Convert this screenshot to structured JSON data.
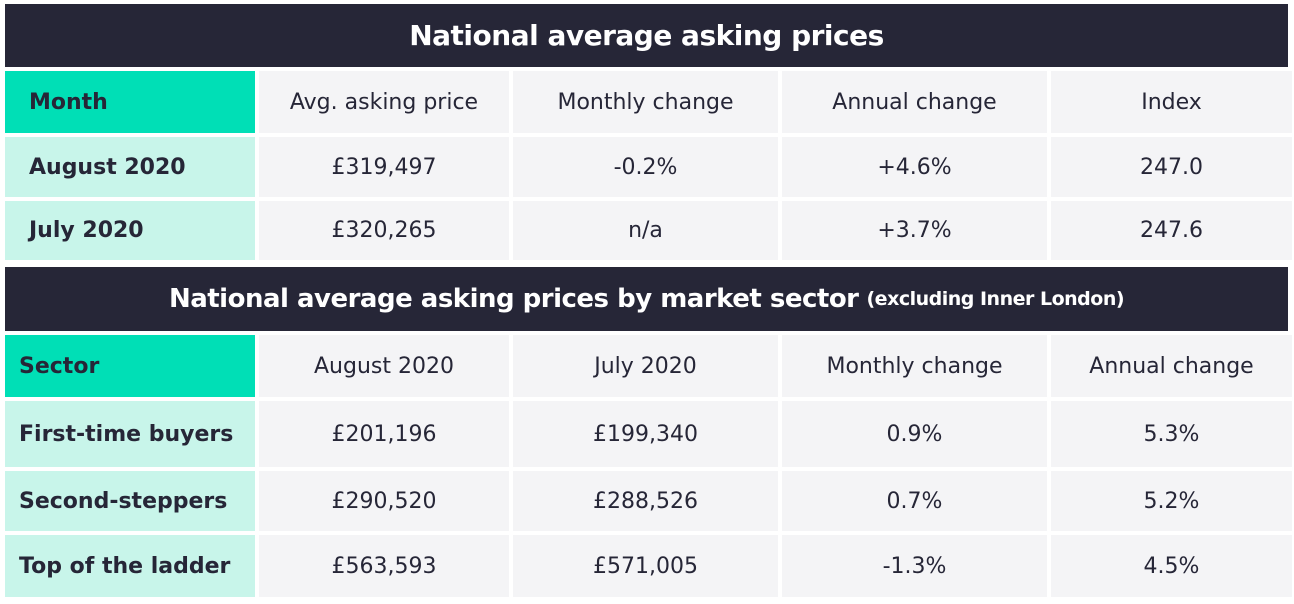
{
  "table1": {
    "title": "National average asking prices",
    "headers": [
      "Month",
      "Avg. asking price",
      "Monthly change",
      "Annual change",
      "Index"
    ],
    "rows": [
      [
        "August 2020",
        "£319,497",
        "-0.2%",
        "+4.6%",
        "247.0"
      ],
      [
        "July 2020",
        "£320,265",
        "n/a",
        "+3.7%",
        "247.6"
      ]
    ]
  },
  "table2": {
    "title": "National average asking prices by market sector",
    "subtitle": "(excluding Inner London)",
    "headers": [
      "Sector",
      "August 2020",
      "July 2020",
      "Monthly change",
      "Annual change"
    ],
    "rows": [
      [
        "First-time buyers",
        "£201,196",
        "£199,340",
        "0.9%",
        "5.3%"
      ],
      [
        "Second-steppers",
        "£290,520",
        "£288,526",
        "0.7%",
        "5.2%"
      ],
      [
        "Top of the ladder",
        "£563,593",
        "£571,005",
        "-1.3%",
        "4.5%"
      ]
    ]
  },
  "colors": {
    "banner_bg": "#262637",
    "header_first_bg": "#00dfb6",
    "row_first_bg": "#c8f5ea",
    "cell_bg": "#f4f4f6"
  }
}
